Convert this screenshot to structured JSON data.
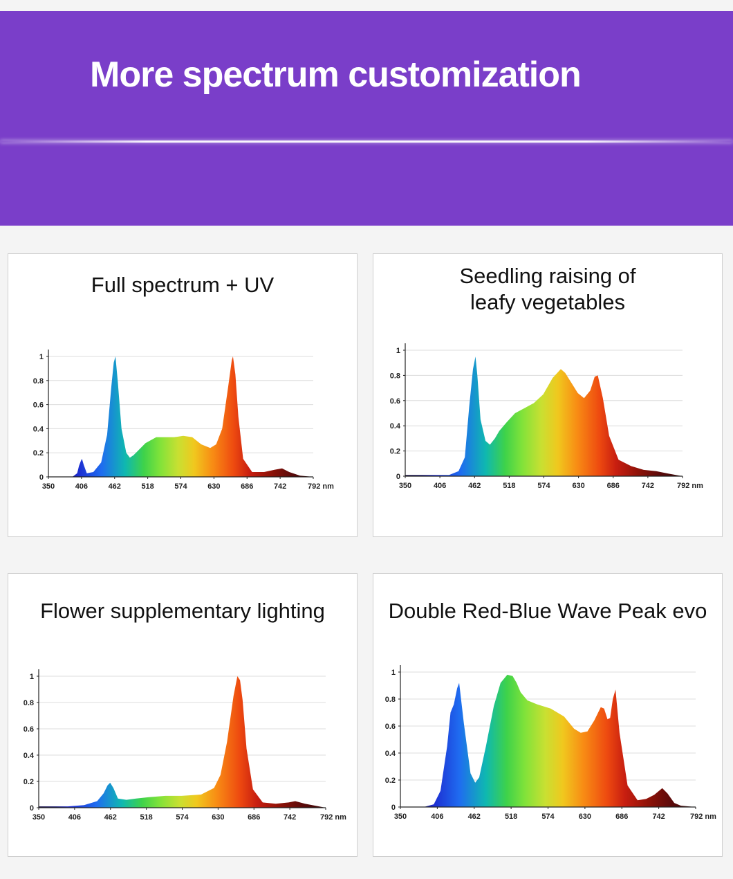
{
  "banner": {
    "title": "More spectrum customization",
    "background": "#7a3ec9"
  },
  "chart_data": [
    {
      "type": "area",
      "title": "Full spectrum + UV",
      "xticks": [
        "350",
        "406",
        "462",
        "518",
        "574",
        "630",
        "686",
        "742",
        "792 nm"
      ],
      "yticks": [
        "0",
        "0.2",
        "0.4",
        "0.6",
        "0.8",
        "1"
      ],
      "xlim": [
        350,
        792
      ],
      "ylim": [
        0,
        1
      ],
      "grid": true,
      "colormap": "visible-spectrum",
      "series": [
        {
          "x": [
            350,
            390,
            398,
            401,
            404,
            406,
            409,
            414,
            425,
            438,
            448,
            455,
            459,
            462,
            466,
            472,
            480,
            486,
            492,
            500,
            512,
            530,
            545,
            560,
            575,
            590,
            605,
            620,
            630,
            640,
            650,
            656,
            658,
            662,
            667,
            675,
            690,
            710,
            728,
            740,
            752,
            770,
            792
          ],
          "y": [
            0,
            0,
            0.03,
            0.09,
            0.13,
            0.15,
            0.1,
            0.03,
            0.04,
            0.12,
            0.35,
            0.75,
            0.95,
            1.0,
            0.78,
            0.4,
            0.2,
            0.16,
            0.18,
            0.22,
            0.28,
            0.33,
            0.33,
            0.33,
            0.34,
            0.33,
            0.27,
            0.24,
            0.27,
            0.4,
            0.75,
            0.97,
            1.0,
            0.85,
            0.5,
            0.15,
            0.04,
            0.04,
            0.06,
            0.07,
            0.04,
            0.01,
            0
          ]
        }
      ]
    },
    {
      "type": "area",
      "title": "Seedling raising of\nleafy vegetables",
      "xticks": [
        "350",
        "406",
        "462",
        "518",
        "574",
        "630",
        "686",
        "742",
        "792 nm"
      ],
      "yticks": [
        "0",
        "0.2",
        "0.4",
        "0.6",
        "0.8",
        "1"
      ],
      "xlim": [
        350,
        792
      ],
      "ylim": [
        0,
        1
      ],
      "grid": true,
      "colormap": "visible-spectrum",
      "series": [
        {
          "x": [
            350,
            400,
            420,
            435,
            445,
            452,
            458,
            462,
            465,
            470,
            478,
            485,
            493,
            500,
            512,
            525,
            540,
            555,
            570,
            585,
            598,
            605,
            615,
            625,
            635,
            645,
            652,
            657,
            665,
            675,
            690,
            710,
            730,
            750,
            770,
            792
          ],
          "y": [
            0.01,
            0.01,
            0.01,
            0.04,
            0.15,
            0.55,
            0.85,
            0.95,
            0.8,
            0.45,
            0.28,
            0.25,
            0.3,
            0.36,
            0.43,
            0.5,
            0.54,
            0.58,
            0.65,
            0.78,
            0.85,
            0.82,
            0.74,
            0.66,
            0.62,
            0.68,
            0.79,
            0.8,
            0.62,
            0.32,
            0.13,
            0.08,
            0.05,
            0.04,
            0.02,
            0
          ]
        }
      ]
    },
    {
      "type": "area",
      "title": "Flower supplementary lighting",
      "xticks": [
        "350",
        "406",
        "462",
        "518",
        "574",
        "630",
        "686",
        "742",
        "792 nm"
      ],
      "yticks": [
        "0",
        "0.2",
        "0.4",
        "0.6",
        "0.8",
        "1"
      ],
      "xlim": [
        350,
        792
      ],
      "ylim": [
        0,
        1
      ],
      "grid": true,
      "colormap": "visible-spectrum",
      "series": [
        {
          "x": [
            350,
            395,
            420,
            440,
            450,
            456,
            460,
            465,
            472,
            485,
            500,
            520,
            545,
            570,
            600,
            620,
            630,
            640,
            650,
            656,
            660,
            664,
            670,
            680,
            695,
            715,
            735,
            745,
            760,
            792
          ],
          "y": [
            0.01,
            0.01,
            0.02,
            0.05,
            0.11,
            0.17,
            0.19,
            0.15,
            0.07,
            0.06,
            0.07,
            0.08,
            0.09,
            0.09,
            0.1,
            0.15,
            0.25,
            0.5,
            0.85,
            1.0,
            0.97,
            0.82,
            0.45,
            0.14,
            0.04,
            0.03,
            0.04,
            0.05,
            0.03,
            0
          ]
        }
      ]
    },
    {
      "type": "area",
      "title": "Double Red-Blue Wave Peak evo",
      "xticks": [
        "350",
        "406",
        "462",
        "518",
        "574",
        "630",
        "686",
        "742",
        "792 nm"
      ],
      "yticks": [
        "0",
        "0.2",
        "0.4",
        "0.6",
        "0.8",
        "1"
      ],
      "xlim": [
        350,
        792
      ],
      "ylim": [
        0,
        1
      ],
      "grid": true,
      "colormap": "visible-spectrum",
      "series": [
        {
          "x": [
            350,
            385,
            400,
            410,
            420,
            425,
            430,
            435,
            438,
            445,
            455,
            462,
            468,
            478,
            490,
            500,
            510,
            518,
            524,
            530,
            540,
            555,
            575,
            595,
            610,
            620,
            630,
            640,
            650,
            655,
            660,
            664,
            668,
            672,
            678,
            690,
            705,
            718,
            730,
            742,
            750,
            760,
            770,
            792
          ],
          "y": [
            0,
            0,
            0.02,
            0.12,
            0.45,
            0.7,
            0.76,
            0.88,
            0.92,
            0.62,
            0.25,
            0.18,
            0.22,
            0.45,
            0.75,
            0.92,
            0.98,
            0.97,
            0.92,
            0.85,
            0.79,
            0.76,
            0.73,
            0.67,
            0.58,
            0.55,
            0.56,
            0.64,
            0.74,
            0.73,
            0.65,
            0.66,
            0.8,
            0.87,
            0.55,
            0.16,
            0.05,
            0.06,
            0.09,
            0.14,
            0.1,
            0.03,
            0.01,
            0
          ]
        }
      ]
    }
  ]
}
